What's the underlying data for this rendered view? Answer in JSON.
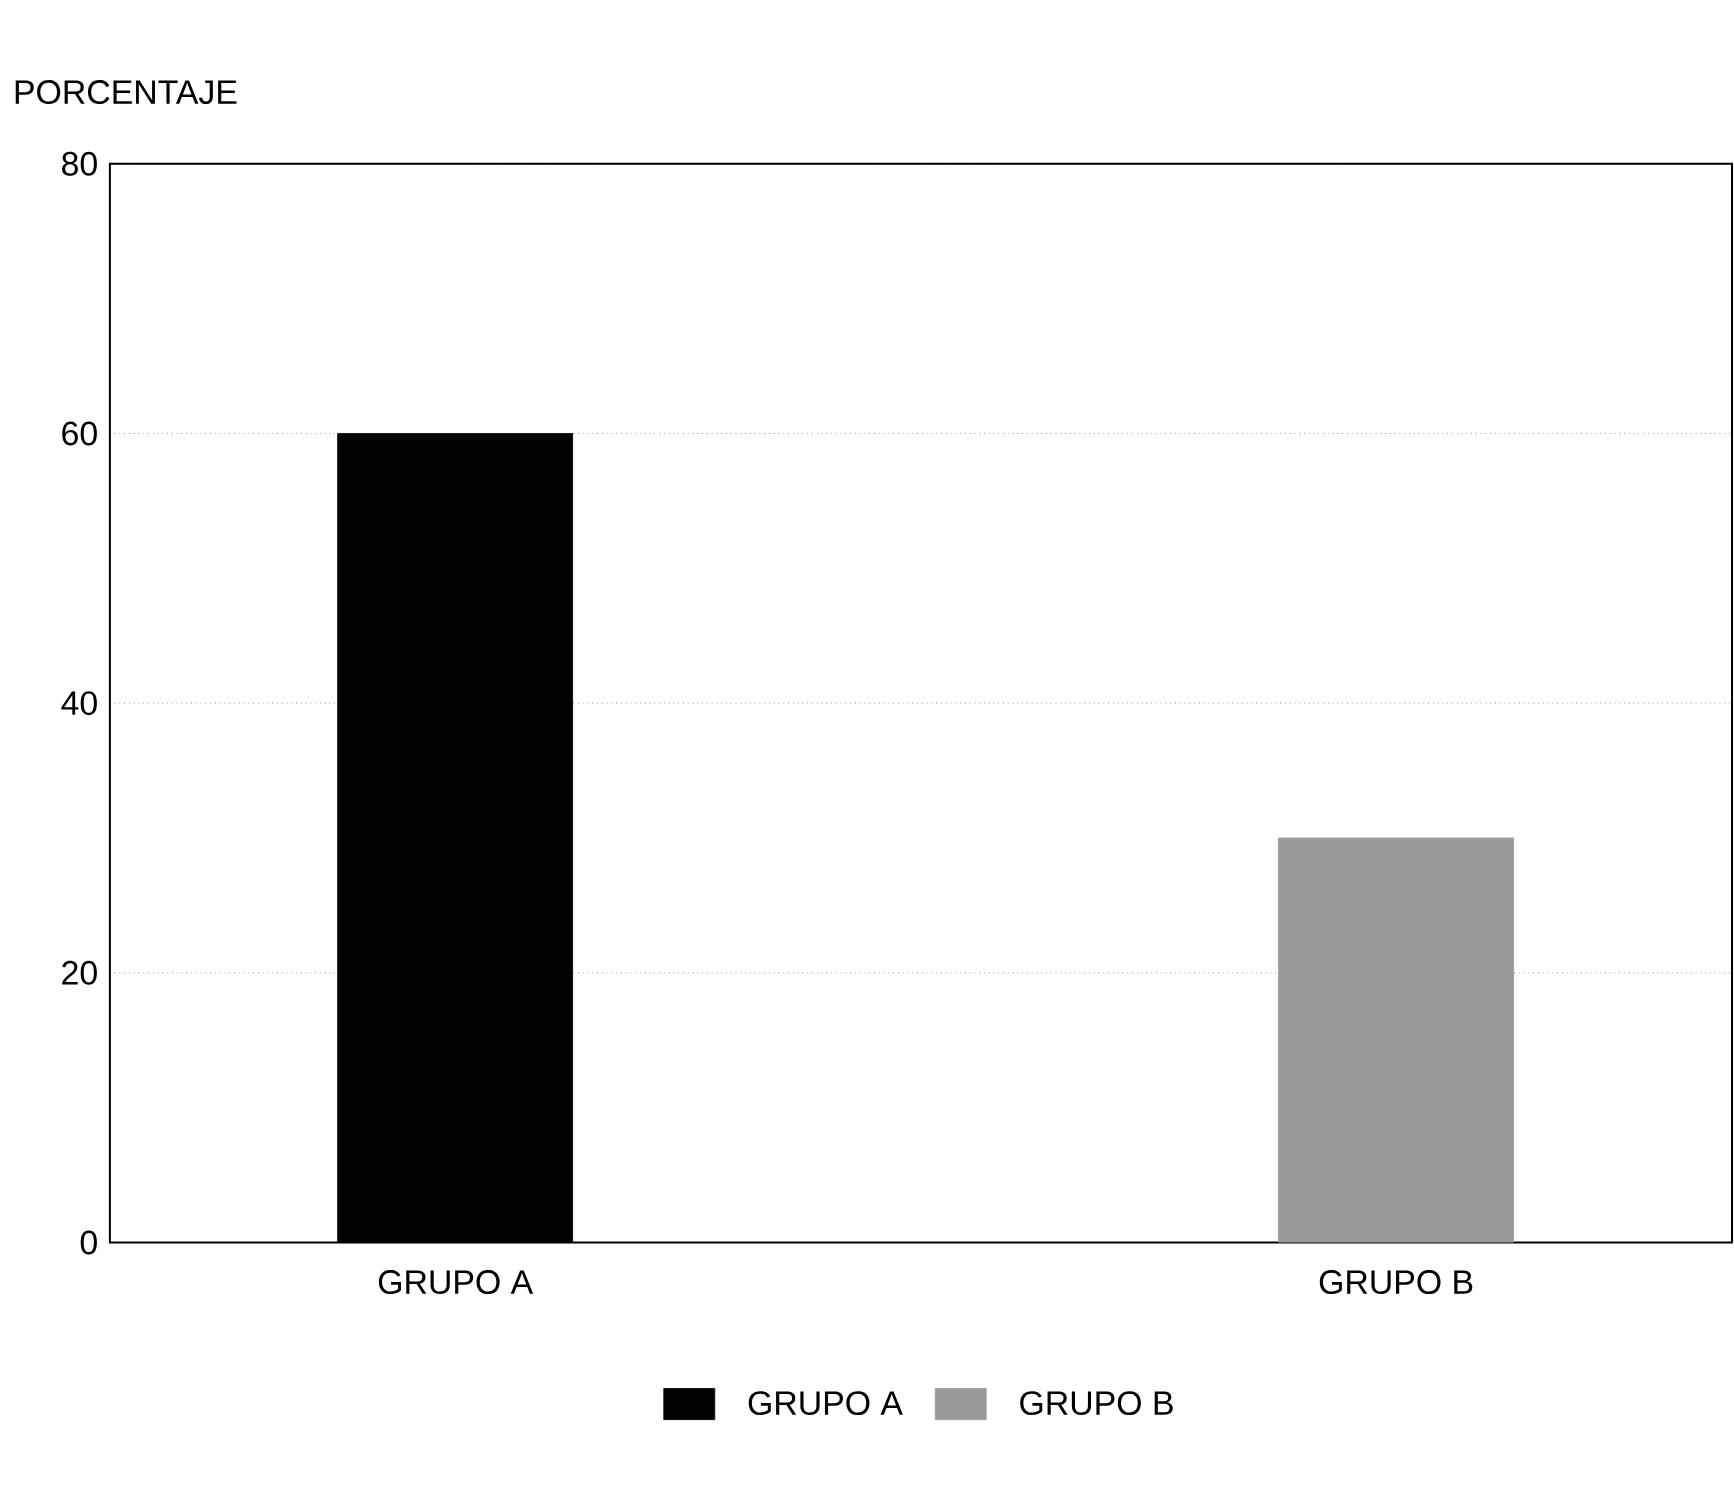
{
  "chart_data": {
    "type": "bar",
    "ylabel": "PORCENTAJE",
    "categories": [
      "GRUPO A",
      "GRUPO B"
    ],
    "series": [
      {
        "name": "GRUPO A",
        "color": "#000000",
        "values": [
          60,
          null
        ]
      },
      {
        "name": "GRUPO B",
        "color": "#9a9a9a",
        "values": [
          null,
          30
        ]
      }
    ],
    "ylim": [
      0,
      80
    ],
    "yticks": [
      0,
      20,
      40,
      60,
      80
    ],
    "grid": "y",
    "legend": "bottom"
  }
}
